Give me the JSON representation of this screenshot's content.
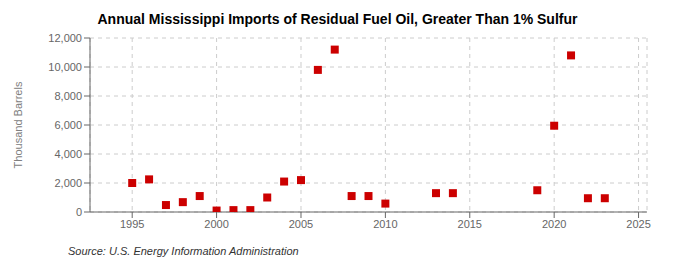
{
  "chart_data": {
    "type": "scatter",
    "title": "Annual Mississippi Imports of Residual Fuel Oil, Greater Than 1% Sulfur",
    "ylabel": "Thousand Barrels",
    "source": "Source: U.S. Energy Information Administration",
    "x": [
      1995,
      1996,
      1997,
      1998,
      1999,
      2000,
      2001,
      2002,
      2003,
      2004,
      2005,
      2006,
      2007,
      2008,
      2009,
      2010,
      2013,
      2014,
      2019,
      2020,
      2021,
      2022,
      2023
    ],
    "values": [
      2000,
      2250,
      480,
      680,
      1100,
      100,
      130,
      130,
      1000,
      2100,
      2200,
      9800,
      11200,
      1100,
      1100,
      580,
      1300,
      1300,
      1500,
      5950,
      10800,
      950,
      950
    ],
    "color": "#cc0000",
    "marker": "square",
    "xlim": [
      1992.5,
      2025.5
    ],
    "xticks": [
      1995,
      2000,
      2005,
      2010,
      2015,
      2020,
      2025
    ],
    "ylim": [
      0,
      12000
    ],
    "yticks": [
      0,
      {
        "value": 2000,
        "label": "2,000"
      },
      {
        "value": 4000,
        "label": "4,000"
      },
      {
        "value": 6000,
        "label": "6,000"
      },
      {
        "value": 8000,
        "label": "8,000"
      },
      {
        "value": 10000,
        "label": "10,000"
      },
      {
        "value": 12000,
        "label": "12,000"
      }
    ],
    "grid": true
  }
}
